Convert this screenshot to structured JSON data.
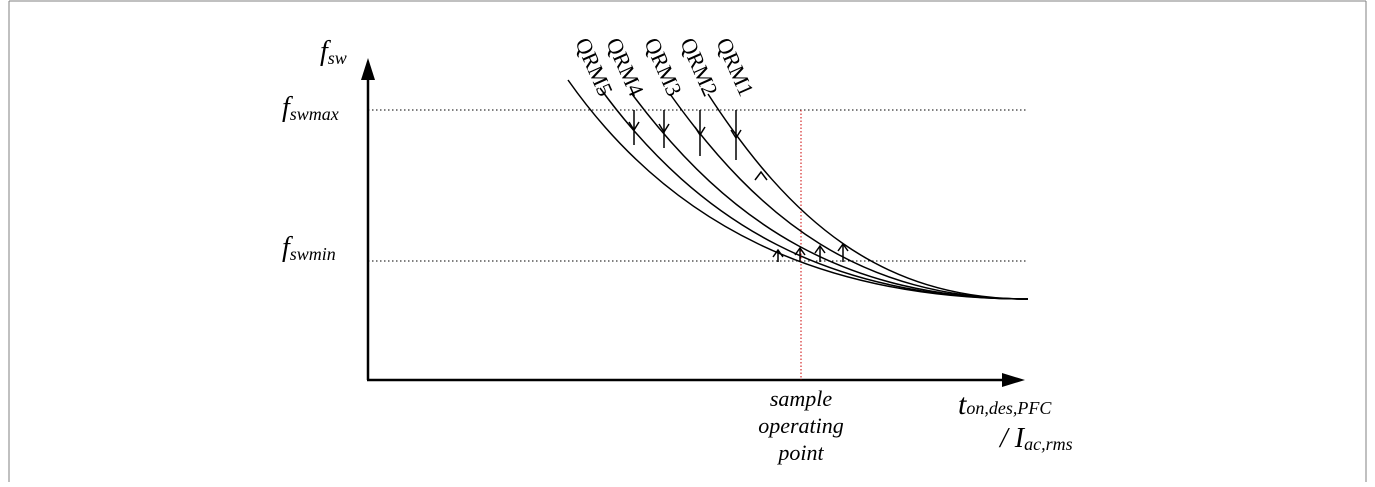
{
  "diagram": {
    "y_axis_label": {
      "main": "f",
      "sub": "sw"
    },
    "x_axis_label": {
      "line1_main": "t",
      "line1_sub": "on,des,PFC",
      "line2_prefix": "/ ",
      "line2_main": "I",
      "line2_sub": "ac,rms"
    },
    "fswmax_label": {
      "main": "f",
      "sub": "swmax"
    },
    "fswmin_label": {
      "main": "f",
      "sub": "swmin"
    },
    "operating_point_label": [
      "sample",
      "operating",
      "point"
    ],
    "curve_labels": [
      "QRM1",
      "QRM2",
      "QRM3",
      "QRM4",
      "QRM5"
    ],
    "colors": {
      "line": "#000000",
      "reference": "#cc0000",
      "frame": "#808080"
    }
  }
}
